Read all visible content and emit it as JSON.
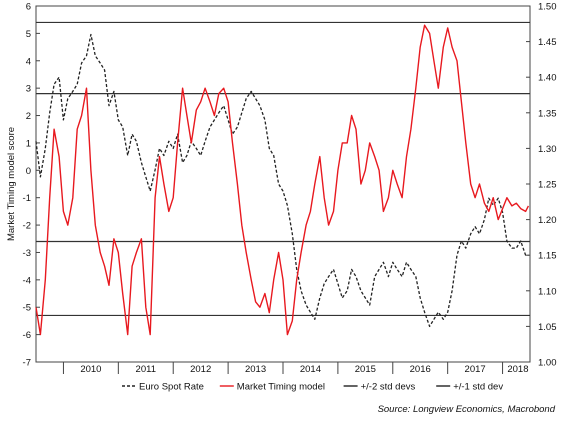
{
  "chart_data": {
    "type": "line",
    "ylabel": "Market Timing model score",
    "x_ticks": [
      "2010",
      "2011",
      "2012",
      "2013",
      "2014",
      "2015",
      "2016",
      "2017",
      "2018"
    ],
    "xlim": [
      2009.5,
      2018.5
    ],
    "y_left": {
      "ticks": [
        "6",
        "5",
        "4",
        "3",
        "2",
        "1",
        "0",
        "-1",
        "-2",
        "-3",
        "-4",
        "-5",
        "-6",
        "-7"
      ],
      "ylim": [
        -7,
        6
      ]
    },
    "y_right": {
      "ticks": [
        "1.50",
        "1.45",
        "1.40",
        "1.35",
        "1.30",
        "1.25",
        "1.20",
        "1.15",
        "1.10",
        "1.05",
        "1.00"
      ],
      "ylim": [
        1.0,
        1.5
      ]
    },
    "reference_lines": [
      {
        "name": "+2 std dev",
        "value": 5.4
      },
      {
        "name": "+1 std dev",
        "value": 2.8
      },
      {
        "name": "-1 std dev",
        "value": -2.6
      },
      {
        "name": "-2 std dev",
        "value": -5.3
      }
    ],
    "series": [
      {
        "name": "Euro Spot Rate",
        "axis": "right",
        "color": "#222222",
        "style": "dashed",
        "x": [
          2009.5,
          2009.58,
          2009.67,
          2009.75,
          2009.83,
          2009.92,
          2010.0,
          2010.08,
          2010.17,
          2010.25,
          2010.33,
          2010.42,
          2010.5,
          2010.58,
          2010.67,
          2010.75,
          2010.83,
          2010.92,
          2011.0,
          2011.08,
          2011.17,
          2011.25,
          2011.33,
          2011.42,
          2011.5,
          2011.58,
          2011.67,
          2011.75,
          2011.83,
          2011.92,
          2012.0,
          2012.08,
          2012.17,
          2012.25,
          2012.33,
          2012.42,
          2012.5,
          2012.58,
          2012.67,
          2012.75,
          2012.83,
          2012.92,
          2013.0,
          2013.08,
          2013.17,
          2013.25,
          2013.33,
          2013.42,
          2013.5,
          2013.58,
          2013.67,
          2013.75,
          2013.83,
          2013.92,
          2014.0,
          2014.08,
          2014.17,
          2014.25,
          2014.33,
          2014.42,
          2014.5,
          2014.58,
          2014.67,
          2014.75,
          2014.83,
          2014.92,
          2015.0,
          2015.08,
          2015.17,
          2015.25,
          2015.33,
          2015.42,
          2015.5,
          2015.58,
          2015.67,
          2015.75,
          2015.83,
          2015.92,
          2016.0,
          2016.08,
          2016.17,
          2016.25,
          2016.33,
          2016.42,
          2016.5,
          2016.58,
          2016.67,
          2016.75,
          2016.83,
          2016.92,
          2017.0,
          2017.08,
          2017.17,
          2017.25,
          2017.33,
          2017.42,
          2017.5,
          2017.58,
          2017.67,
          2017.75,
          2017.83,
          2017.92,
          2018.0,
          2018.08,
          2018.17,
          2018.25,
          2018.33,
          2018.42,
          2018.47
        ],
        "values": [
          1.31,
          1.26,
          1.3,
          1.35,
          1.39,
          1.4,
          1.34,
          1.37,
          1.38,
          1.39,
          1.42,
          1.43,
          1.46,
          1.43,
          1.42,
          1.41,
          1.36,
          1.38,
          1.34,
          1.33,
          1.29,
          1.32,
          1.31,
          1.28,
          1.26,
          1.24,
          1.27,
          1.3,
          1.29,
          1.31,
          1.3,
          1.32,
          1.28,
          1.29,
          1.31,
          1.3,
          1.29,
          1.31,
          1.33,
          1.34,
          1.35,
          1.36,
          1.34,
          1.32,
          1.33,
          1.35,
          1.37,
          1.38,
          1.37,
          1.36,
          1.34,
          1.3,
          1.29,
          1.25,
          1.24,
          1.22,
          1.18,
          1.13,
          1.1,
          1.08,
          1.07,
          1.06,
          1.09,
          1.11,
          1.12,
          1.13,
          1.11,
          1.09,
          1.1,
          1.13,
          1.12,
          1.1,
          1.09,
          1.08,
          1.12,
          1.13,
          1.14,
          1.12,
          1.14,
          1.13,
          1.12,
          1.14,
          1.13,
          1.12,
          1.09,
          1.07,
          1.05,
          1.06,
          1.07,
          1.06,
          1.07,
          1.1,
          1.15,
          1.17,
          1.16,
          1.18,
          1.19,
          1.18,
          1.2,
          1.23,
          1.22,
          1.23,
          1.21,
          1.17,
          1.16,
          1.16,
          1.17,
          1.15,
          1.15
        ]
      },
      {
        "name": "Market Timing model",
        "axis": "left",
        "color": "#e8191f",
        "style": "solid",
        "x": [
          2009.5,
          2009.58,
          2009.67,
          2009.75,
          2009.83,
          2009.92,
          2010.0,
          2010.08,
          2010.17,
          2010.25,
          2010.33,
          2010.42,
          2010.5,
          2010.58,
          2010.67,
          2010.75,
          2010.83,
          2010.92,
          2011.0,
          2011.08,
          2011.17,
          2011.25,
          2011.33,
          2011.42,
          2011.5,
          2011.58,
          2011.67,
          2011.75,
          2011.83,
          2011.92,
          2012.0,
          2012.08,
          2012.17,
          2012.25,
          2012.33,
          2012.42,
          2012.5,
          2012.58,
          2012.67,
          2012.75,
          2012.83,
          2012.92,
          2013.0,
          2013.08,
          2013.17,
          2013.25,
          2013.33,
          2013.42,
          2013.5,
          2013.58,
          2013.67,
          2013.75,
          2013.83,
          2013.92,
          2014.0,
          2014.08,
          2014.17,
          2014.25,
          2014.33,
          2014.42,
          2014.5,
          2014.58,
          2014.67,
          2014.75,
          2014.83,
          2014.92,
          2015.0,
          2015.08,
          2015.17,
          2015.25,
          2015.33,
          2015.42,
          2015.5,
          2015.58,
          2015.67,
          2015.75,
          2015.83,
          2015.92,
          2016.0,
          2016.08,
          2016.17,
          2016.25,
          2016.33,
          2016.42,
          2016.5,
          2016.58,
          2016.67,
          2016.75,
          2016.83,
          2016.92,
          2017.0,
          2017.08,
          2017.17,
          2017.25,
          2017.33,
          2017.42,
          2017.5,
          2017.58,
          2017.67,
          2017.75,
          2017.83,
          2017.92,
          2018.0,
          2018.08,
          2018.17,
          2018.25,
          2018.33,
          2018.42,
          2018.47
        ],
        "values": [
          -5.0,
          -6.0,
          -4.0,
          -1.0,
          1.5,
          0.5,
          -1.5,
          -2.0,
          -1.0,
          1.5,
          2.0,
          3.0,
          0.0,
          -2.0,
          -3.0,
          -3.5,
          -4.2,
          -2.5,
          -3.0,
          -4.5,
          -6.0,
          -3.5,
          -3.0,
          -2.5,
          -5.0,
          -6.0,
          -1.0,
          0.5,
          -0.5,
          -1.5,
          -1.0,
          1.0,
          3.0,
          2.0,
          1.0,
          2.2,
          2.5,
          3.0,
          2.5,
          2.0,
          2.8,
          3.0,
          2.5,
          1.0,
          -0.5,
          -2.0,
          -3.0,
          -4.0,
          -4.8,
          -5.0,
          -4.5,
          -5.2,
          -4.0,
          -3.0,
          -4.0,
          -6.0,
          -5.5,
          -4.0,
          -3.0,
          -2.0,
          -1.5,
          -0.5,
          0.5,
          -1.0,
          -2.0,
          -1.5,
          0.0,
          1.0,
          1.0,
          2.0,
          1.5,
          -0.5,
          0.0,
          1.0,
          0.5,
          0.0,
          -1.5,
          -1.0,
          0.0,
          -0.5,
          -1.0,
          0.5,
          1.5,
          3.0,
          4.5,
          5.3,
          5.0,
          4.0,
          3.0,
          4.5,
          5.2,
          4.5,
          4.0,
          2.5,
          1.0,
          -0.5,
          -1.0,
          -0.5,
          -1.2,
          -1.5,
          -1.0,
          -1.8,
          -1.4,
          -1.0,
          -1.3,
          -1.2,
          -1.4,
          -1.5,
          -1.3
        ]
      }
    ],
    "legend": {
      "placement": "bottom",
      "entries": [
        {
          "label": "Euro Spot Rate",
          "style": "dashed",
          "color": "#222222"
        },
        {
          "label": "Market Timing model",
          "style": "solid",
          "color": "#e8191f"
        },
        {
          "label": "+/-2 std devs",
          "style": "solid",
          "color": "#222222"
        },
        {
          "label": "+/-1 std dev",
          "style": "solid",
          "color": "#222222"
        }
      ]
    },
    "source": "Source: Longview Economics, Macrobond",
    "grid": false
  }
}
